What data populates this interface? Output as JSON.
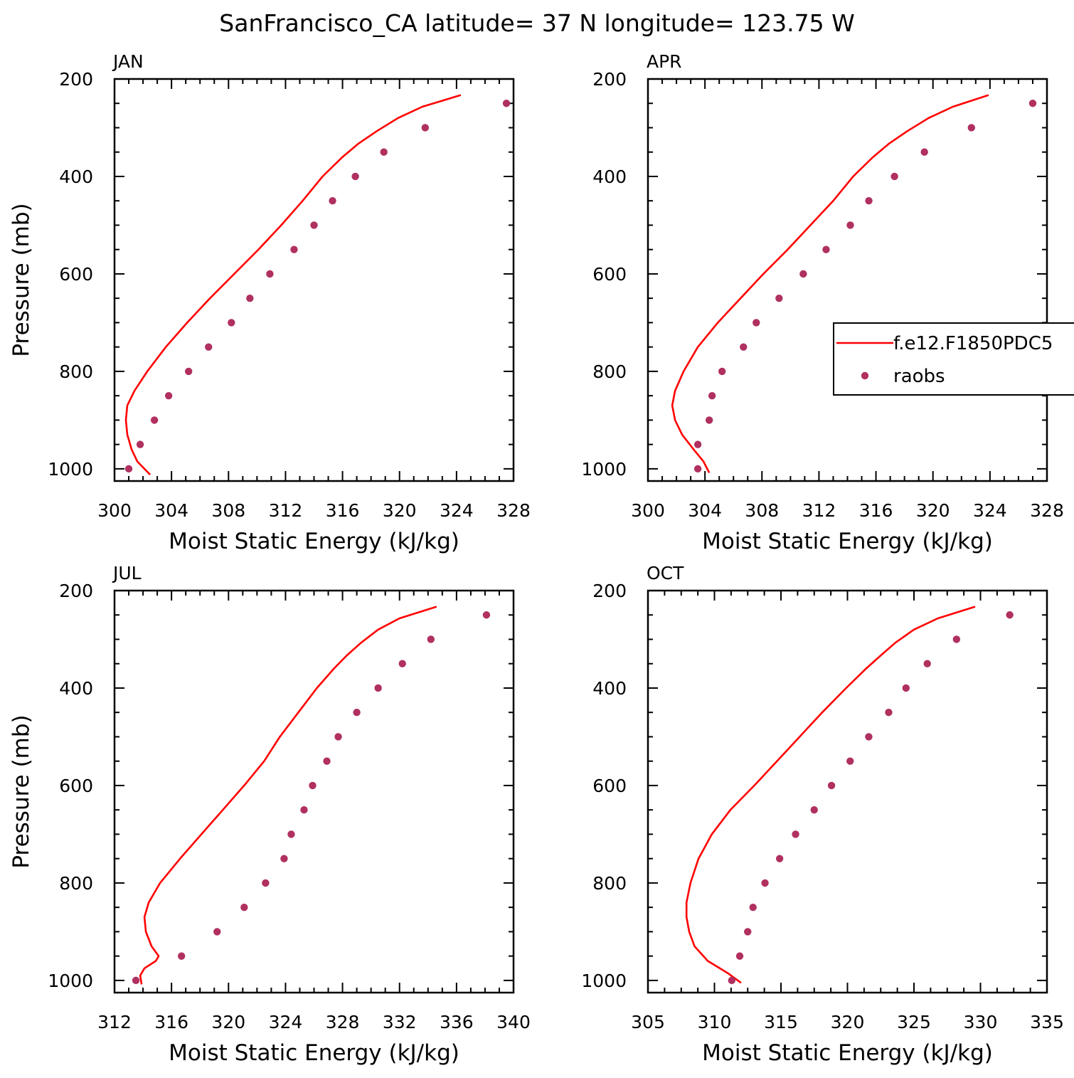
{
  "title": "SanFrancisco_CA  latitude= 37 N longitude= 123.75 W",
  "legend": {
    "entries": [
      {
        "label": "f.e12.F1850PDC5",
        "kind": "line",
        "color": "#ff0000"
      },
      {
        "label": "raobs",
        "kind": "marker",
        "color": "#b03060"
      }
    ]
  },
  "chart_data": [
    {
      "type": "line",
      "panel_label": "JAN",
      "xlabel": "Moist Static Energy (kJ/kg)",
      "ylabel": "Pressure (mb)",
      "xlim": [
        300,
        328
      ],
      "ylim": [
        1025,
        200
      ],
      "xticks": [
        "300",
        "304",
        "308",
        "312",
        "316",
        "320",
        "324",
        "328"
      ],
      "yticks": [
        "200",
        "400",
        "600",
        "800",
        "1000"
      ],
      "series": [
        {
          "name": "f.e12.F1850PDC5",
          "style": "line",
          "x": [
            324.3,
            321.6,
            319.9,
            318.4,
            317.1,
            316.0,
            314.6,
            313.2,
            311.7,
            310.1,
            308.4,
            306.7,
            305.1,
            303.6,
            302.3,
            301.4,
            300.9,
            300.8,
            300.9,
            301.2,
            301.6,
            302.5
          ],
          "y": [
            233,
            257,
            280,
            307,
            333,
            360,
            400,
            450,
            500,
            550,
            600,
            650,
            700,
            750,
            800,
            840,
            870,
            900,
            930,
            960,
            985,
            1012
          ]
        },
        {
          "name": "raobs",
          "style": "marker",
          "x": [
            327.5,
            321.8,
            318.9,
            316.9,
            315.3,
            314.0,
            312.6,
            310.9,
            309.5,
            308.2,
            306.6,
            305.2,
            303.8,
            302.8,
            301.8,
            301.0
          ],
          "y": [
            250,
            300,
            350,
            400,
            450,
            500,
            550,
            600,
            650,
            700,
            750,
            800,
            850,
            900,
            950,
            1000
          ]
        }
      ]
    },
    {
      "type": "line",
      "panel_label": "APR",
      "xlabel": "Moist Static Energy (kJ/kg)",
      "ylabel": "",
      "xlim": [
        300,
        328
      ],
      "ylim": [
        1025,
        200
      ],
      "xticks": [
        "300",
        "304",
        "308",
        "312",
        "316",
        "320",
        "324",
        "328"
      ],
      "yticks": [
        "200",
        "400",
        "600",
        "800",
        "1000"
      ],
      "series": [
        {
          "name": "f.e12.F1850PDC5",
          "style": "line",
          "x": [
            323.9,
            321.4,
            319.7,
            318.2,
            316.9,
            315.8,
            314.4,
            313.0,
            311.4,
            309.8,
            308.1,
            306.5,
            304.9,
            303.5,
            302.5,
            301.9,
            301.7,
            301.9,
            302.4,
            303.2,
            303.9,
            304.3
          ],
          "y": [
            233,
            257,
            280,
            307,
            333,
            360,
            400,
            450,
            500,
            550,
            600,
            650,
            700,
            750,
            800,
            840,
            870,
            900,
            930,
            960,
            985,
            1008
          ]
        },
        {
          "name": "raobs",
          "style": "marker",
          "x": [
            327.0,
            322.7,
            319.4,
            317.3,
            315.5,
            314.2,
            312.5,
            310.9,
            309.2,
            307.6,
            306.7,
            305.2,
            304.5,
            304.3,
            303.5,
            303.5
          ],
          "y": [
            250,
            300,
            350,
            400,
            450,
            500,
            550,
            600,
            650,
            700,
            750,
            800,
            850,
            900,
            950,
            1000
          ]
        }
      ]
    },
    {
      "type": "line",
      "panel_label": "JUL",
      "xlabel": "Moist Static Energy (kJ/kg)",
      "ylabel": "Pressure (mb)",
      "xlim": [
        312,
        340
      ],
      "ylim": [
        1025,
        200
      ],
      "xticks": [
        "312",
        "316",
        "320",
        "324",
        "328",
        "332",
        "336",
        "340"
      ],
      "yticks": [
        "200",
        "400",
        "600",
        "800",
        "1000"
      ],
      "series": [
        {
          "name": "f.e12.F1850PDC5",
          "style": "line",
          "x": [
            334.6,
            332.0,
            330.5,
            329.3,
            328.3,
            327.4,
            326.2,
            324.9,
            323.6,
            322.5,
            321.1,
            319.6,
            318.1,
            316.6,
            315.2,
            314.4,
            314.1,
            314.2,
            314.6,
            315.1,
            314.9,
            314.1,
            313.8,
            313.9
          ],
          "y": [
            233,
            257,
            280,
            307,
            333,
            360,
            400,
            450,
            500,
            550,
            600,
            650,
            700,
            750,
            800,
            840,
            870,
            900,
            930,
            950,
            960,
            975,
            990,
            1008
          ]
        },
        {
          "name": "raobs",
          "style": "marker",
          "x": [
            338.1,
            334.2,
            332.2,
            330.5,
            329.0,
            327.7,
            326.9,
            325.9,
            325.3,
            324.4,
            323.9,
            322.6,
            321.1,
            319.2,
            316.7,
            313.5
          ],
          "y": [
            250,
            300,
            350,
            400,
            450,
            500,
            550,
            600,
            650,
            700,
            750,
            800,
            850,
            900,
            950,
            1000
          ]
        }
      ]
    },
    {
      "type": "line",
      "panel_label": "OCT",
      "xlabel": "Moist Static Energy (kJ/kg)",
      "ylabel": "",
      "xlim": [
        305,
        335
      ],
      "ylim": [
        1025,
        200
      ],
      "xticks": [
        "305",
        "310",
        "315",
        "320",
        "325",
        "330",
        "335"
      ],
      "yticks": [
        "200",
        "400",
        "600",
        "800",
        "1000"
      ],
      "series": [
        {
          "name": "f.e12.F1850PDC5",
          "style": "line",
          "x": [
            329.6,
            326.8,
            325.0,
            323.6,
            322.5,
            321.4,
            319.9,
            318.1,
            316.4,
            314.7,
            313.0,
            311.2,
            309.8,
            308.8,
            308.2,
            307.9,
            307.9,
            308.1,
            308.5,
            309.5,
            311.0,
            312.0
          ],
          "y": [
            233,
            257,
            280,
            307,
            333,
            360,
            400,
            450,
            500,
            550,
            600,
            650,
            700,
            750,
            800,
            840,
            870,
            900,
            930,
            960,
            985,
            1005
          ]
        },
        {
          "name": "raobs",
          "style": "marker",
          "x": [
            332.2,
            328.2,
            326.0,
            324.4,
            323.1,
            321.6,
            320.2,
            318.8,
            317.5,
            316.1,
            314.9,
            313.8,
            312.9,
            312.5,
            311.9,
            311.3
          ],
          "y": [
            250,
            300,
            350,
            400,
            450,
            500,
            550,
            600,
            650,
            700,
            750,
            800,
            850,
            900,
            950,
            1000
          ]
        }
      ]
    }
  ]
}
